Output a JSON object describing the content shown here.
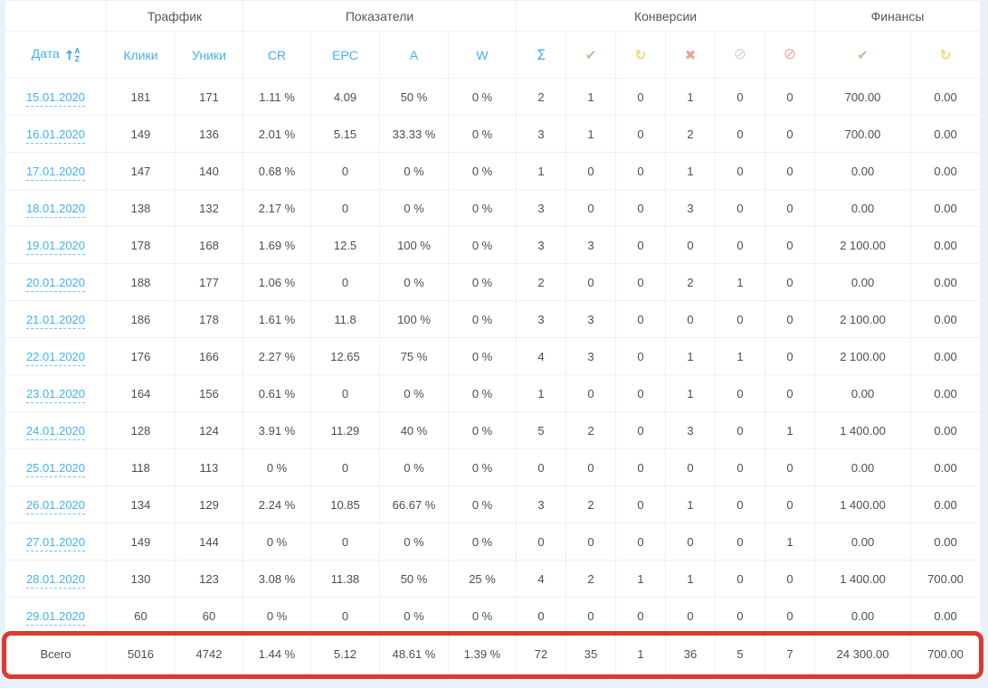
{
  "page": {
    "background": "#e9f2fb"
  },
  "colors": {
    "header_text": "#585858",
    "column_header_text": "#44b0f1",
    "link": "#44b0f1",
    "cell_text": "#4e4e4e",
    "border": "#f0f0f1",
    "table_background": "#ffffff",
    "highlight_border": "#df392e"
  },
  "icons": {
    "glyphs": {
      "sigma": "Σ",
      "check": "✔",
      "refresh": "↻",
      "x-mark": "✖",
      "ban-gray": "⊘",
      "ban-red": "⊘",
      "sort-arrow": "↑"
    },
    "colors": {
      "sigma": "#44b0f1",
      "check": "#a9c998",
      "refresh": "#f6d471",
      "x-mark": "#e4a495",
      "ban-gray": "#cfd4da",
      "ban-red": "#e8ab9c"
    },
    "sort_letters": [
      "A",
      "Z"
    ]
  },
  "table": {
    "group_headers": [
      {
        "label": "",
        "colspan": 1,
        "name": "group-date"
      },
      {
        "label": "Траффик",
        "colspan": 2,
        "name": "group-traffic"
      },
      {
        "label": "Показатели",
        "colspan": 4,
        "name": "group-indicators"
      },
      {
        "label": "Конверсии",
        "colspan": 6,
        "name": "group-conversions"
      },
      {
        "label": "Финансы",
        "colspan": 2,
        "name": "group-finances"
      }
    ],
    "columns": [
      {
        "key": "date",
        "label": "Дата",
        "icon": "sort-alpha-asc",
        "width": 112
      },
      {
        "key": "clicks",
        "label": "Клики",
        "width": 76
      },
      {
        "key": "uniques",
        "label": "Уники",
        "width": 75
      },
      {
        "key": "cr",
        "label": "CR",
        "width": 75
      },
      {
        "key": "epc",
        "label": "EPC",
        "width": 76
      },
      {
        "key": "a",
        "label": "A",
        "width": 76
      },
      {
        "key": "w",
        "label": "W",
        "width": 75
      },
      {
        "key": "conv-total",
        "icon": "sigma",
        "width": 55
      },
      {
        "key": "conv-approved",
        "icon": "check",
        "width": 55
      },
      {
        "key": "conv-pending",
        "icon": "refresh",
        "width": 55
      },
      {
        "key": "conv-declined",
        "icon": "x-mark",
        "width": 55
      },
      {
        "key": "conv-hold",
        "icon": "ban-gray",
        "width": 55
      },
      {
        "key": "conv-trash",
        "icon": "ban-red",
        "width": 55
      },
      {
        "key": "money-approved",
        "icon": "check",
        "width": 106
      },
      {
        "key": "money-pending",
        "icon": "refresh",
        "width": 77
      }
    ],
    "rows": [
      [
        "15.01.2020",
        "181",
        "171",
        "1.11 %",
        "4.09",
        "50 %",
        "0 %",
        "2",
        "1",
        "0",
        "1",
        "0",
        "0",
        "700.00",
        "0.00"
      ],
      [
        "16.01.2020",
        "149",
        "136",
        "2.01 %",
        "5.15",
        "33.33 %",
        "0 %",
        "3",
        "1",
        "0",
        "2",
        "0",
        "0",
        "700.00",
        "0.00"
      ],
      [
        "17.01.2020",
        "147",
        "140",
        "0.68 %",
        "0",
        "0 %",
        "0 %",
        "1",
        "0",
        "0",
        "1",
        "0",
        "0",
        "0.00",
        "0.00"
      ],
      [
        "18.01.2020",
        "138",
        "132",
        "2.17 %",
        "0",
        "0 %",
        "0 %",
        "3",
        "0",
        "0",
        "3",
        "0",
        "0",
        "0.00",
        "0.00"
      ],
      [
        "19.01.2020",
        "178",
        "168",
        "1.69 %",
        "12.5",
        "100 %",
        "0 %",
        "3",
        "3",
        "0",
        "0",
        "0",
        "0",
        "2 100.00",
        "0.00"
      ],
      [
        "20.01.2020",
        "188",
        "177",
        "1.06 %",
        "0",
        "0 %",
        "0 %",
        "2",
        "0",
        "0",
        "2",
        "1",
        "0",
        "0.00",
        "0.00"
      ],
      [
        "21.01.2020",
        "186",
        "178",
        "1.61 %",
        "11.8",
        "100 %",
        "0 %",
        "3",
        "3",
        "0",
        "0",
        "0",
        "0",
        "2 100.00",
        "0.00"
      ],
      [
        "22.01.2020",
        "176",
        "166",
        "2.27 %",
        "12.65",
        "75 %",
        "0 %",
        "4",
        "3",
        "0",
        "1",
        "1",
        "0",
        "2 100.00",
        "0.00"
      ],
      [
        "23.01.2020",
        "164",
        "156",
        "0.61 %",
        "0",
        "0 %",
        "0 %",
        "1",
        "0",
        "0",
        "1",
        "0",
        "0",
        "0.00",
        "0.00"
      ],
      [
        "24.01.2020",
        "128",
        "124",
        "3.91 %",
        "11.29",
        "40 %",
        "0 %",
        "5",
        "2",
        "0",
        "3",
        "0",
        "1",
        "1 400.00",
        "0.00"
      ],
      [
        "25.01.2020",
        "118",
        "113",
        "0 %",
        "0",
        "0 %",
        "0 %",
        "0",
        "0",
        "0",
        "0",
        "0",
        "0",
        "0.00",
        "0.00"
      ],
      [
        "26.01.2020",
        "134",
        "129",
        "2.24 %",
        "10.85",
        "66.67 %",
        "0 %",
        "3",
        "2",
        "0",
        "1",
        "0",
        "0",
        "1 400.00",
        "0.00"
      ],
      [
        "27.01.2020",
        "149",
        "144",
        "0 %",
        "0",
        "0 %",
        "0 %",
        "0",
        "0",
        "0",
        "0",
        "0",
        "1",
        "0.00",
        "0.00"
      ],
      [
        "28.01.2020",
        "130",
        "123",
        "3.08 %",
        "11.38",
        "50 %",
        "25 %",
        "4",
        "2",
        "1",
        "1",
        "0",
        "0",
        "1 400.00",
        "700.00"
      ],
      [
        "29.01.2020",
        "60",
        "60",
        "0 %",
        "0",
        "0 %",
        "0 %",
        "0",
        "0",
        "0",
        "0",
        "0",
        "0",
        "0.00",
        "0.00"
      ]
    ],
    "total_row": [
      "Всего",
      "5016",
      "4742",
      "1.44 %",
      "5.12",
      "48.61 %",
      "1.39 %",
      "72",
      "35",
      "1",
      "36",
      "5",
      "7",
      "24 300.00",
      "700.00"
    ]
  }
}
